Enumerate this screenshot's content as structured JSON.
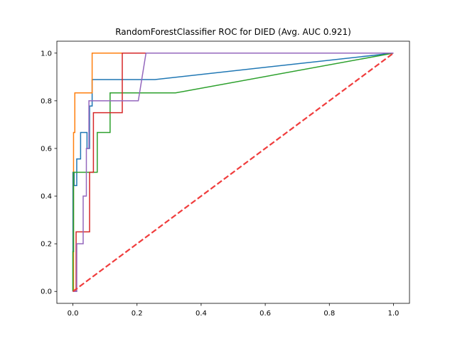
{
  "chart_data": {
    "type": "line",
    "title": "RandomForestClassifier ROC for DIED (Avg. AUC 0.921)",
    "xlabel": "",
    "ylabel": "",
    "xlim": [
      -0.05,
      1.05
    ],
    "ylim": [
      -0.05,
      1.05
    ],
    "grid": false,
    "legend": "none",
    "x_ticks": [
      0.0,
      0.2,
      0.4,
      0.6,
      0.8,
      1.0
    ],
    "x_tick_labels": [
      "0.0",
      "0.2",
      "0.4",
      "0.6",
      "0.8",
      "1.0"
    ],
    "y_ticks": [
      0.0,
      0.2,
      0.4,
      0.6,
      0.8,
      1.0
    ],
    "y_tick_labels": [
      "0.0",
      "0.2",
      "0.4",
      "0.6",
      "0.8",
      "1.0"
    ],
    "series": [
      {
        "color": "#1f77b4",
        "x": [
          0,
          0,
          0.004,
          0.004,
          0.012,
          0.012,
          0.024,
          0.024,
          0.044,
          0.044,
          0.052,
          0.052,
          0.06,
          0.06,
          0.256,
          1.0
        ],
        "y": [
          0,
          0.5,
          0.5,
          0.444,
          0.444,
          0.556,
          0.556,
          0.667,
          0.667,
          0.6,
          0.6,
          0.778,
          0.778,
          0.889,
          0.889,
          1.0
        ]
      },
      {
        "color": "#ff7f0e",
        "x": [
          0,
          0.002,
          0.002,
          0.006,
          0.006,
          0.008,
          0.008,
          0.06,
          0.06,
          1.0
        ],
        "y": [
          0,
          0,
          0.667,
          0.667,
          0.833,
          0.833,
          0.833,
          0.833,
          1.0,
          1.0
        ]
      },
      {
        "color": "#2ca02c",
        "x": [
          0,
          0,
          0.002,
          0.002,
          0.06,
          0.06,
          0.076,
          0.076,
          0.116,
          0.116,
          0.32,
          1.0
        ],
        "y": [
          0,
          0.167,
          0.167,
          0.5,
          0.5,
          0.5,
          0.5,
          0.667,
          0.667,
          0.833,
          0.833,
          1.0
        ]
      },
      {
        "color": "#d62728",
        "x": [
          0,
          0.01,
          0.01,
          0.052,
          0.052,
          0.064,
          0.064,
          0.154,
          0.154,
          1.0
        ],
        "y": [
          0,
          0,
          0.25,
          0.25,
          0.5,
          0.5,
          0.75,
          0.75,
          1.0,
          1.0
        ]
      },
      {
        "color": "#9467bd",
        "x": [
          0,
          0.012,
          0.012,
          0.032,
          0.032,
          0.042,
          0.042,
          0.05,
          0.05,
          0.204,
          0.204,
          0.228,
          0.228,
          1.0
        ],
        "y": [
          0,
          0,
          0.2,
          0.2,
          0.4,
          0.4,
          0.6,
          0.6,
          0.8,
          0.8,
          0.8,
          1.0,
          1.0,
          1.0
        ]
      }
    ],
    "reference_line": {
      "color": "#f03c3c",
      "style": "dashed",
      "x": [
        0,
        1
      ],
      "y": [
        0,
        1
      ]
    }
  }
}
